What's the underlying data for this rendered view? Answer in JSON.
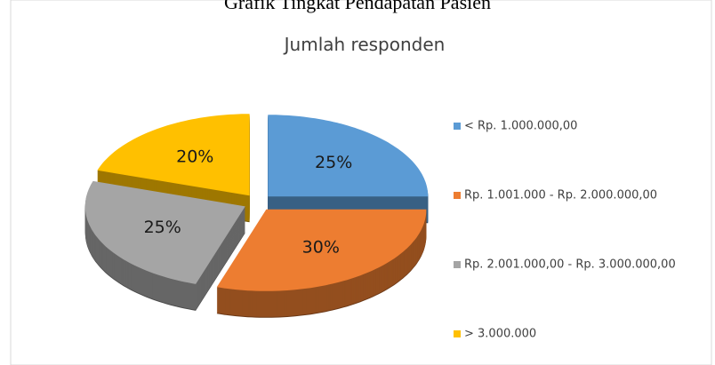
{
  "caption": "Grafik Tingkat Pendapatan Pasien",
  "chart_data": {
    "type": "pie",
    "title": "Jumlah responden",
    "categories": [
      "< Rp. 1.000.000,00",
      "Rp. 1.001.000 - Rp. 2.000.000,00",
      "Rp. 2.001.000,00 - Rp. 3.000.000,00",
      "> 3.000.000"
    ],
    "values": [
      25,
      30,
      25,
      20
    ],
    "value_labels": [
      "25%",
      "30%",
      "25%",
      "20%"
    ],
    "colors": [
      "#5b9bd5",
      "#ed7d31",
      "#a5a5a5",
      "#ffc000"
    ],
    "legend": "right"
  }
}
